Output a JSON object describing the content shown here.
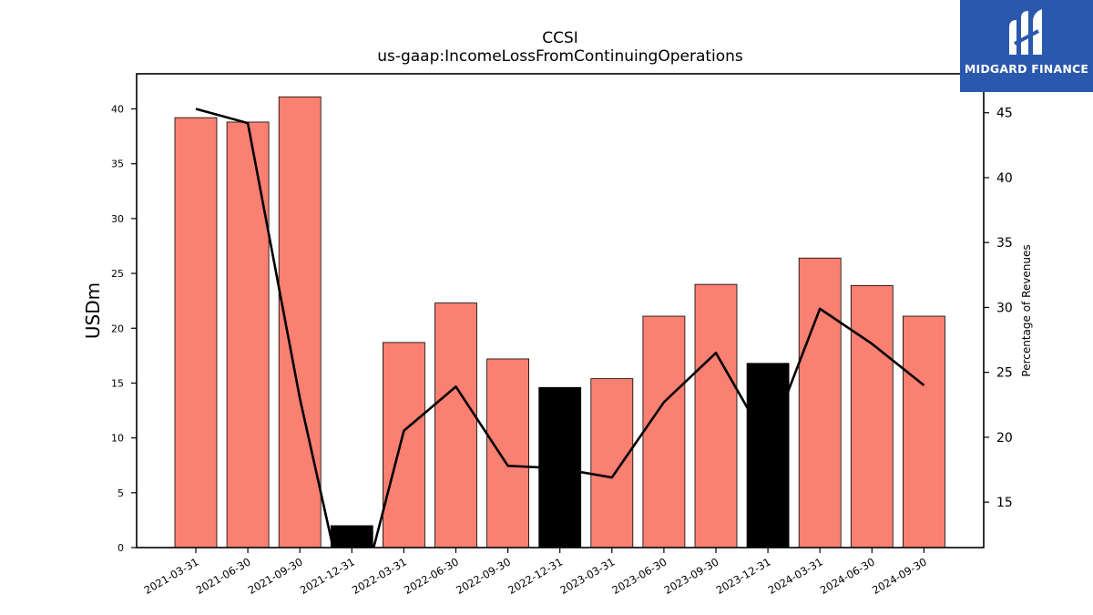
{
  "header": {
    "title": "CCSI",
    "subtitle": "us-gaap:IncomeLossFromContinuingOperations"
  },
  "logo": {
    "text": "MIDGARD FINANCE",
    "icon": "midgard-logo-icon",
    "background": "#2a58ad"
  },
  "chart_data": {
    "type": "bar",
    "categories": [
      "2021-03-31",
      "2021-06-30",
      "2021-09-30",
      "2021-12-31",
      "2022-03-31",
      "2022-06-30",
      "2022-09-30",
      "2022-12-31",
      "2023-03-31",
      "2023-06-30",
      "2023-09-30",
      "2023-12-31",
      "2024-03-31",
      "2024-06-30",
      "2024-09-30"
    ],
    "series": [
      {
        "type": "bar",
        "axis": "left",
        "values": [
          39.2,
          38.8,
          41.1,
          2.0,
          18.7,
          22.3,
          17.2,
          14.6,
          15.4,
          21.1,
          24.0,
          16.8,
          26.4,
          23.9,
          21.1
        ],
        "colors": [
          "#fa8072",
          "#fa8072",
          "#fa8072",
          "#000000",
          "#fa8072",
          "#fa8072",
          "#fa8072",
          "#000000",
          "#fa8072",
          "#fa8072",
          "#fa8072",
          "#000000",
          "#fa8072",
          "#fa8072",
          "#fa8072"
        ]
      },
      {
        "type": "line",
        "axis": "right",
        "values": [
          45.3,
          44.2,
          23.0,
          5.0,
          20.5,
          23.9,
          17.8,
          17.6,
          16.9,
          22.7,
          26.5,
          19.5,
          29.9,
          27.2,
          24.0
        ],
        "color": "#000000"
      }
    ],
    "ylabel": "USDm",
    "ylabel_right": "Percentage of Revenues",
    "ylim": [
      0,
      43.2
    ],
    "ylim_right": [
      11.5,
      48.0
    ],
    "yticks": [
      0,
      5,
      10,
      15,
      20,
      25,
      30,
      35,
      40
    ],
    "yticks_right": [
      15,
      20,
      25,
      30,
      35,
      40,
      45
    ],
    "grid": false,
    "legend": "none"
  }
}
